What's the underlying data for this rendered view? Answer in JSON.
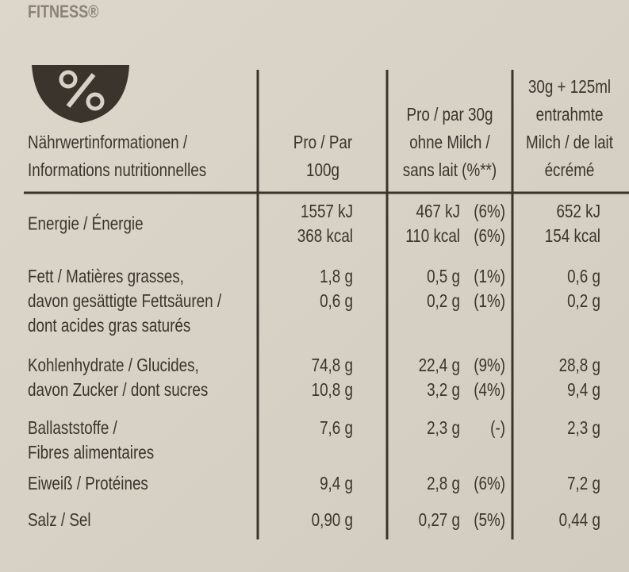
{
  "brand": "FITNESS®",
  "table": {
    "header": [
      [
        "Nährwertinformationen /",
        "Informations nutritionnelles"
      ],
      [
        "Pro / Par",
        "100g"
      ],
      [
        "Pro / par 30g",
        "ohne Milch /",
        "sans lait (%**)"
      ],
      [
        "30g + 125ml",
        "entrahmte",
        "Milch / de lait",
        "écrémé"
      ]
    ],
    "rows": [
      {
        "label": [
          "Energie / Énergie"
        ],
        "per100": [
          "1557 kJ",
          "368 kcal"
        ],
        "per30": [
          "467 kJ",
          "110 kcal"
        ],
        "pct": [
          "(6%)",
          "(6%)"
        ],
        "milk": [
          "652 kJ",
          "154 kcal"
        ]
      },
      {
        "label": [
          "Fett / Matières grasses,",
          "davon gesättigte Fettsäuren /",
          "dont acides gras saturés"
        ],
        "per100": [
          "1,8 g",
          "0,6 g"
        ],
        "per30": [
          "0,5 g",
          "0,2 g"
        ],
        "pct": [
          "(1%)",
          "(1%)"
        ],
        "milk": [
          "0,6 g",
          "0,2 g"
        ]
      },
      {
        "label": [
          "Kohlenhydrate / Glucides,",
          "davon Zucker / dont sucres"
        ],
        "per100": [
          "74,8 g",
          "10,8 g"
        ],
        "per30": [
          "22,4 g",
          "3,2 g"
        ],
        "pct": [
          "(9%)",
          "(4%)"
        ],
        "milk": [
          "28,8 g",
          "9,4 g"
        ]
      },
      {
        "label": [
          "Ballaststoffe /",
          "Fibres alimentaires"
        ],
        "per100": [
          "7,6 g"
        ],
        "per30": [
          "2,3 g"
        ],
        "pct": [
          "(-)"
        ],
        "milk": [
          "2,3 g"
        ]
      },
      {
        "label": [
          "Eiweiß / Protéines"
        ],
        "per100": [
          "9,4 g"
        ],
        "per30": [
          "2,8 g"
        ],
        "pct": [
          "(6%)"
        ],
        "milk": [
          "7,2 g"
        ]
      },
      {
        "label": [
          "Salz / Sel"
        ],
        "per100": [
          "0,90 g"
        ],
        "per30": [
          "0,27 g"
        ],
        "pct": [
          "(5%)"
        ],
        "milk": [
          "0,44 g"
        ]
      }
    ]
  }
}
